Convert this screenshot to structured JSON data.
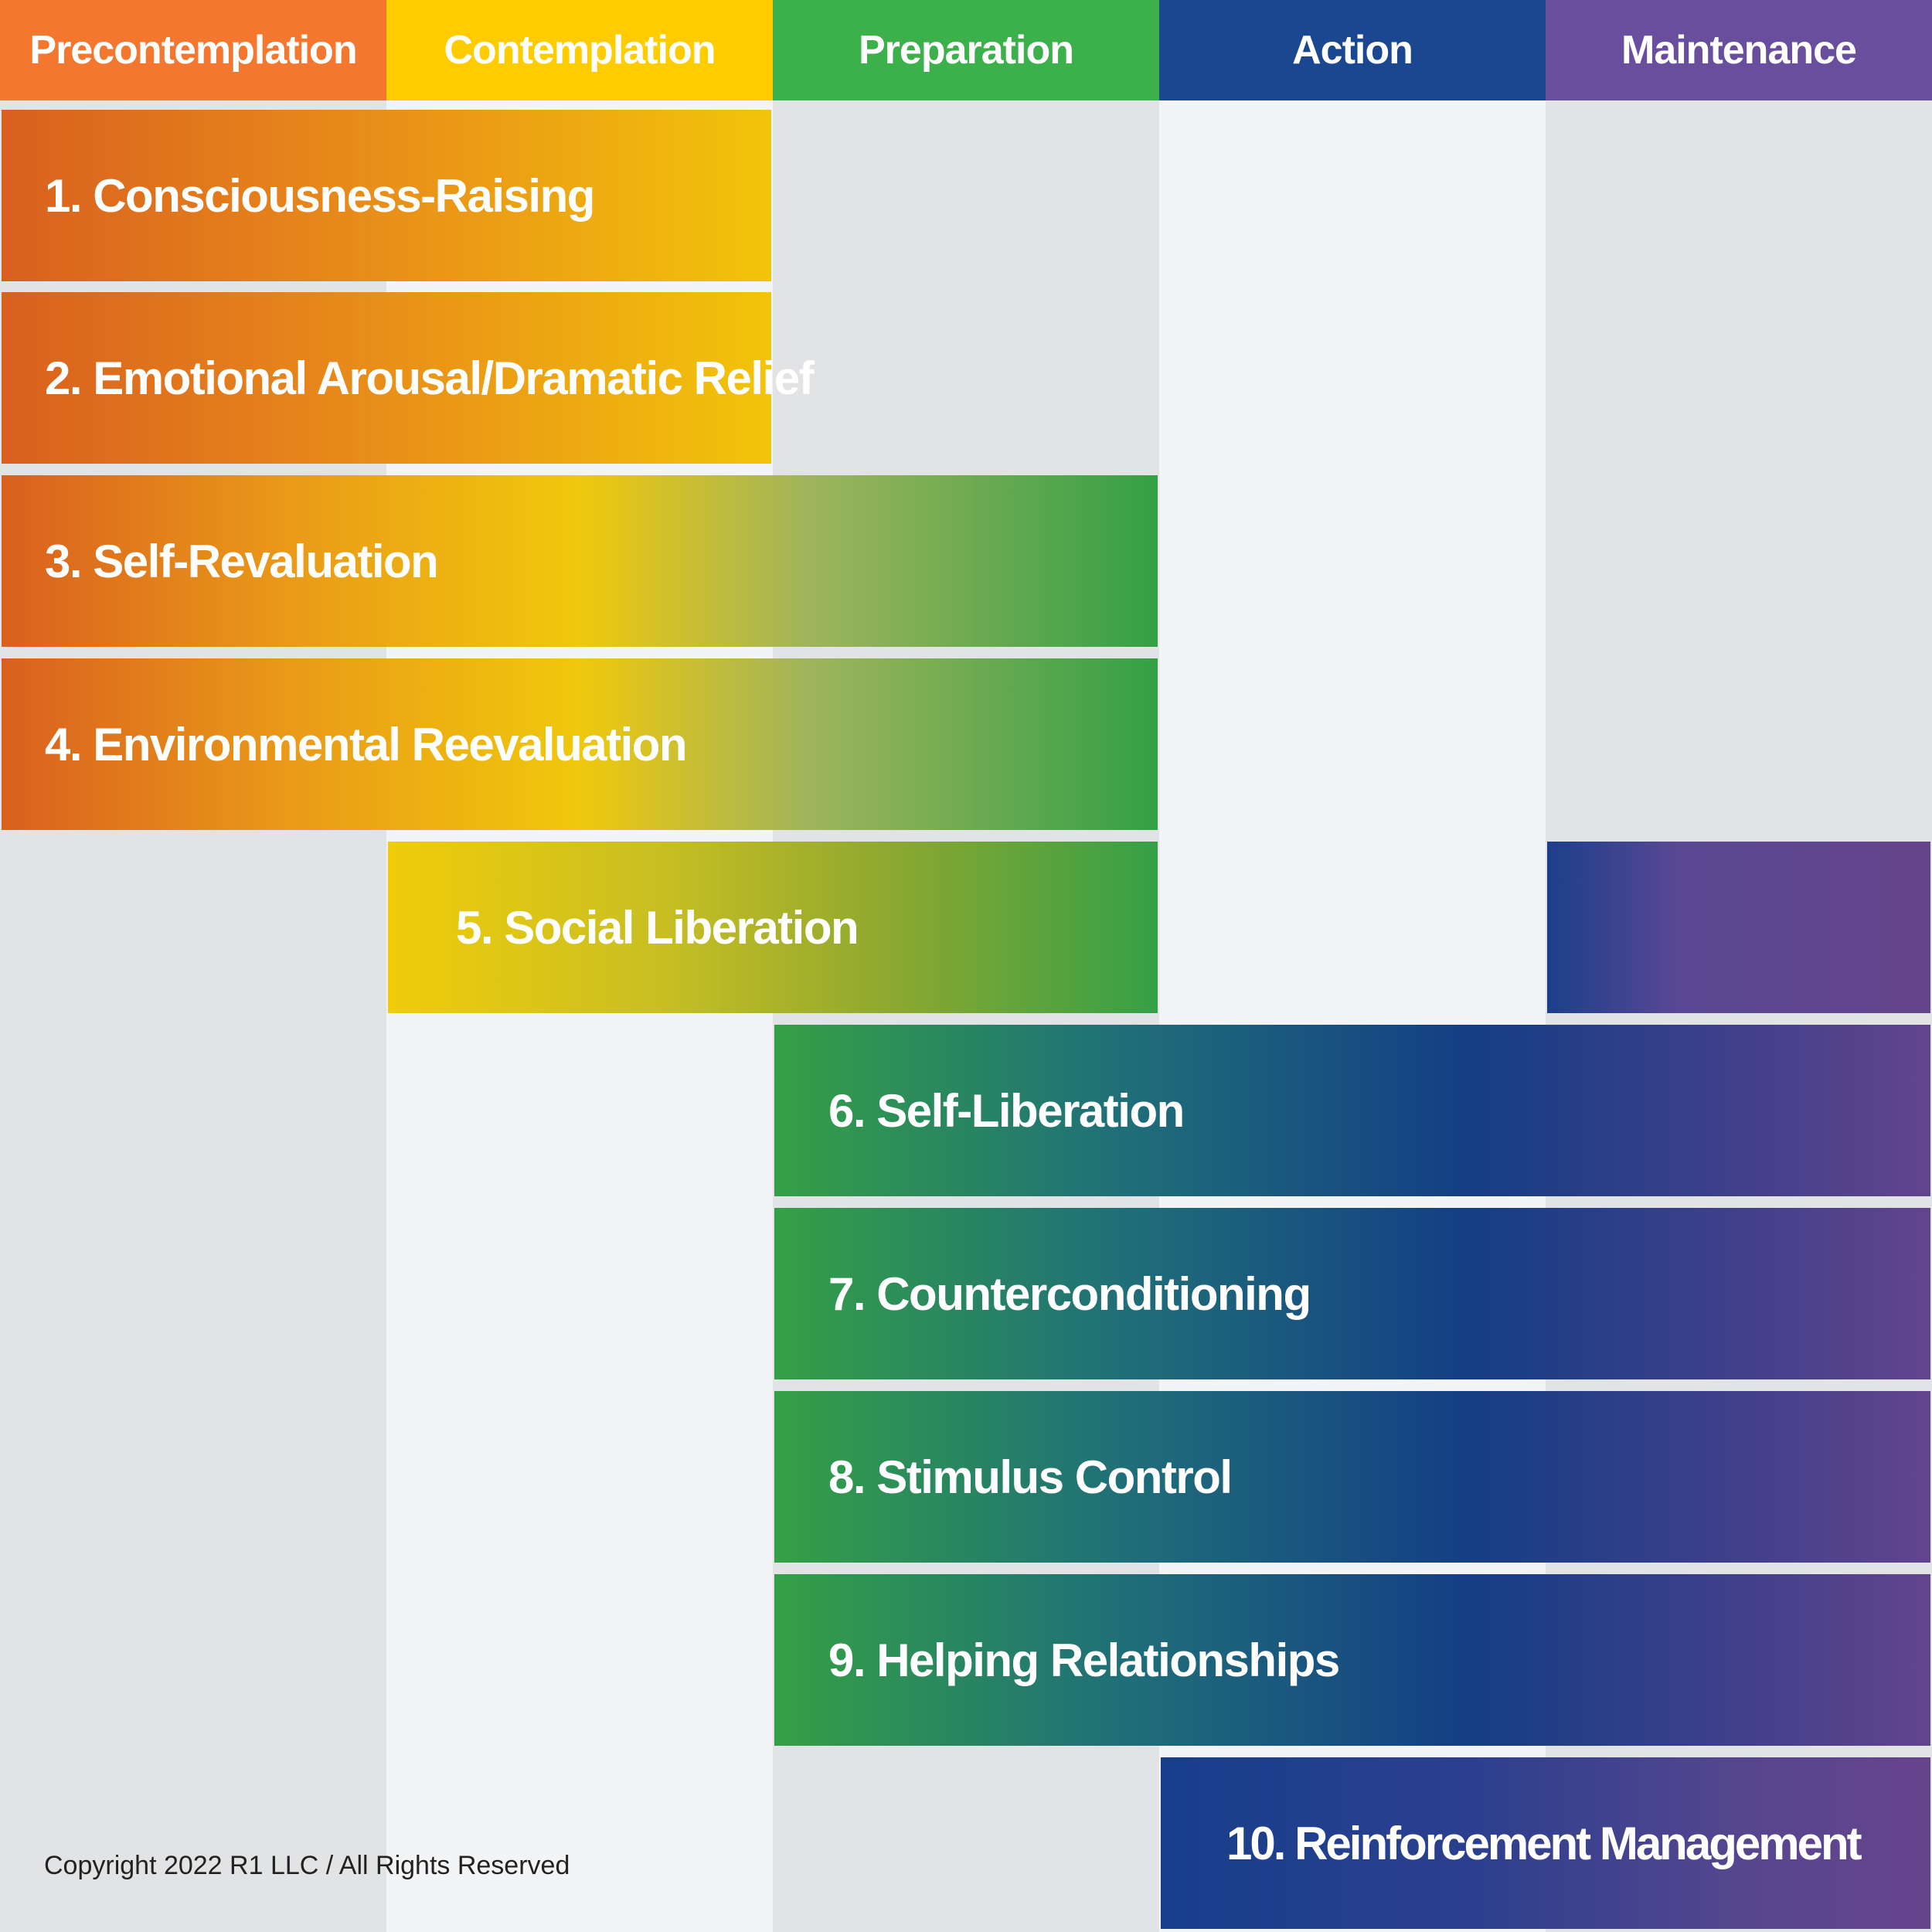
{
  "stages": [
    {
      "label": "Precontemplation",
      "color": "#f47730"
    },
    {
      "label": "Contemplation",
      "color": "#ffcc00"
    },
    {
      "label": "Preparation",
      "color": "#3cb04a"
    },
    {
      "label": "Action",
      "color": "#1a4790"
    },
    {
      "label": "Maintenance",
      "color": "#6a4e9e"
    }
  ],
  "processes": [
    {
      "label": "1. Consciousness-Raising",
      "stages": [
        "Precontemplation",
        "Contemplation"
      ]
    },
    {
      "label": "2. Emotional Arousal/Dramatic Relief",
      "stages": [
        "Precontemplation",
        "Contemplation"
      ]
    },
    {
      "label": "3. Self-Revaluation",
      "stages": [
        "Precontemplation",
        "Contemplation",
        "Preparation"
      ]
    },
    {
      "label": "4. Environmental Reevaluation",
      "stages": [
        "Precontemplation",
        "Contemplation",
        "Preparation"
      ]
    },
    {
      "label": "5. Social Liberation",
      "stages": [
        "Contemplation",
        "Preparation",
        "Maintenance"
      ]
    },
    {
      "label": "6. Self-Liberation",
      "stages": [
        "Preparation",
        "Action",
        "Maintenance"
      ]
    },
    {
      "label": "7. Counterconditioning",
      "stages": [
        "Preparation",
        "Action",
        "Maintenance"
      ]
    },
    {
      "label": "8. Stimulus Control",
      "stages": [
        "Preparation",
        "Action",
        "Maintenance"
      ]
    },
    {
      "label": "9. Helping Relationships",
      "stages": [
        "Preparation",
        "Action",
        "Maintenance"
      ]
    },
    {
      "label": "10. Reinforcement Management",
      "stages": [
        "Action",
        "Maintenance"
      ]
    }
  ],
  "footer": {
    "copyright": "Copyright 2022 R1 LLC / All Rights Reserved"
  }
}
